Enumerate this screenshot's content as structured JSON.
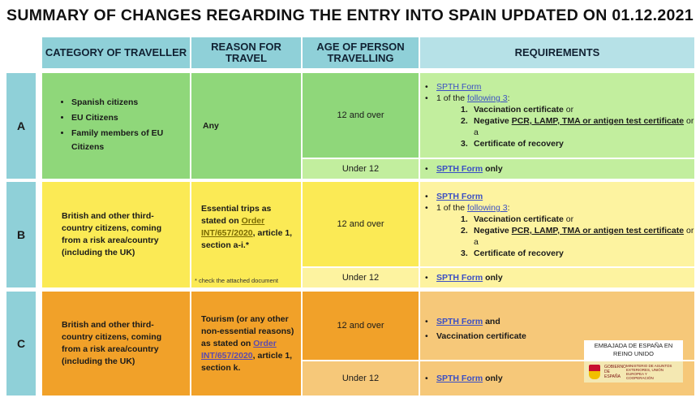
{
  "title": "SUMMARY OF CHANGES REGARDING THE ENTRY INTO SPAIN UPDATED ON  01.12.2021",
  "headers": {
    "category": "CATEGORY OF TRAVELLER",
    "reason": "REASON FOR TRAVEL",
    "age": "AGE OF PERSON TRAVELLING",
    "requirements": "REQUIREMENTS"
  },
  "rows": {
    "a": {
      "label": "A",
      "categories": [
        "Spanish citizens",
        "EU Citizens",
        "Family members of EU Citizens"
      ],
      "reason": "Any",
      "age_over": "12 and over",
      "age_under": "Under 12"
    },
    "b": {
      "label": "B",
      "category": "British and other third-country  citizens, coming from a risk area/country (including the UK)",
      "reason_pre": "Essential  trips  as stated on ",
      "reason_link": "Order INT/657/2020",
      "reason_post": ", article  1, section a-i.*",
      "footnote": "* check the attached document",
      "age_over": "12 and over",
      "age_under": "Under 12"
    },
    "c": {
      "label": "C",
      "category": "British and other third-country citizens, coming from a risk area/country (including the UK)",
      "reason_pre": "Tourism (or any other non-essential reasons)  as stated on ",
      "reason_link": "Order INT/657/2020",
      "reason_post": ", article 1, section k.",
      "age_over": "12 and over",
      "age_under": "Under 12"
    }
  },
  "requirements": {
    "spth_form": "SPTH Form",
    "one_of": "1 of the ",
    "following": "following 3",
    "colon": ":",
    "opt1": "Vaccination certificate",
    "opt1_suffix": " or",
    "opt2_pre": "Negative  ",
    "opt2_tests": "PCR, LAMP, TMA or antigen test certificate",
    "opt2_suffix": " or a",
    "opt3": "Certificate of recovery",
    "only": " only",
    "and": " and",
    "vaccination": "Vaccination certificate"
  },
  "embassy": {
    "name": "EMBAJADA DE ESPAÑA EN REINO UNIDO",
    "gov": "GOBIERNO DE ESPAÑA",
    "ministry": "MINISTERIO DE ASUNTOS EXTERIORES, UNIÓN EUROPEA Y COOPERACIÓN"
  },
  "colors": {
    "header": "#8fd0d8",
    "row_a": "#8fd77a",
    "row_b": "#fbea55",
    "row_c": "#f1a129",
    "link": "#3b4fc4"
  }
}
